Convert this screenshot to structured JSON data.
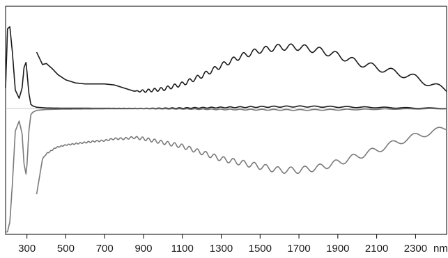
{
  "chart_data": {
    "type": "line",
    "title": "",
    "xlabel": "",
    "ylabel": "",
    "x_unit": "nm",
    "xlim": [
      190,
      2460
    ],
    "ylim": [
      -1,
      1
    ],
    "x_ticks": [
      300,
      500,
      700,
      900,
      1100,
      1300,
      1500,
      1700,
      1900,
      2100,
      2300
    ],
    "grid": false,
    "legend": "none",
    "colors": {
      "dark": "#1a1a1a",
      "gray": "#7a7a7a",
      "frame": "#000000"
    },
    "series": [
      {
        "style": "dark",
        "x": [
          350,
          380,
          400,
          430,
          460,
          500,
          550,
          600,
          650,
          700,
          750,
          800,
          850,
          900,
          1000,
          1100,
          1200,
          1300,
          1400,
          1500,
          1600,
          1700,
          1800,
          1900,
          2000,
          2100,
          2200,
          2300,
          2400,
          2460
        ],
        "y": [
          0.55,
          0.43,
          0.44,
          0.39,
          0.33,
          0.28,
          0.25,
          0.24,
          0.24,
          0.24,
          0.23,
          0.2,
          0.17,
          0.17,
          0.19,
          0.24,
          0.32,
          0.42,
          0.51,
          0.57,
          0.6,
          0.6,
          0.57,
          0.52,
          0.45,
          0.4,
          0.35,
          0.3,
          0.22,
          0.18
        ],
        "amp": [
          0,
          0,
          0,
          0,
          0,
          0,
          0,
          0,
          0,
          0,
          0,
          0,
          0,
          0.012,
          0.015,
          0.018,
          0.02,
          0.022,
          0.024,
          0.026,
          0.027,
          0.028,
          0.028,
          0.028,
          0.028,
          0.028,
          0.027,
          0.027,
          0.026,
          0.025
        ]
      },
      {
        "style": "dark",
        "x": [
          190,
          200,
          212,
          225,
          240,
          260,
          275,
          285,
          295,
          300,
          310,
          320,
          330,
          350,
          400,
          500,
          700,
          900,
          1100,
          1300,
          1500,
          1700,
          1900,
          2100,
          2300,
          2460
        ],
        "y": [
          0.2,
          0.78,
          0.8,
          0.55,
          0.18,
          0.1,
          0.2,
          0.4,
          0.45,
          0.36,
          0.15,
          0.04,
          0.025,
          0.012,
          0.005,
          0.003,
          0.002,
          0.001,
          0.004,
          0.01,
          0.016,
          0.02,
          0.016,
          0.01,
          0.004,
          0.002
        ],
        "amp": [
          0,
          0,
          0,
          0,
          0,
          0,
          0,
          0,
          0,
          0,
          0,
          0,
          0,
          0,
          0,
          0,
          0,
          0.001,
          0.003,
          0.004,
          0.005,
          0.005,
          0.005,
          0.004,
          0.003,
          0.002
        ]
      },
      {
        "style": "gray",
        "x": [
          190,
          200,
          212,
          225,
          240,
          260,
          275,
          285,
          295,
          300,
          310,
          320,
          330,
          350,
          400,
          500,
          700,
          900,
          1100,
          1300,
          1500,
          1700,
          1900,
          2100,
          2300,
          2460
        ],
        "y": [
          -0.98,
          -0.98,
          -0.9,
          -0.6,
          -0.18,
          -0.1,
          -0.2,
          -0.44,
          -0.52,
          -0.45,
          -0.18,
          -0.05,
          -0.03,
          -0.015,
          -0.008,
          -0.005,
          -0.003,
          -0.002,
          -0.004,
          -0.008,
          -0.01,
          -0.012,
          -0.01,
          -0.006,
          -0.003,
          -0.002
        ],
        "amp": [
          0,
          0,
          0,
          0,
          0,
          0,
          0,
          0,
          0,
          0,
          0,
          0,
          0,
          0,
          0,
          0,
          0,
          0.001,
          0.002,
          0.003,
          0.004,
          0.004,
          0.004,
          0.003,
          0.002,
          0.002
        ]
      },
      {
        "style": "gray",
        "x": [
          350,
          380,
          400,
          450,
          500,
          550,
          600,
          650,
          700,
          750,
          800,
          850,
          900,
          1000,
          1100,
          1200,
          1300,
          1400,
          1500,
          1600,
          1700,
          1800,
          1900,
          2000,
          2100,
          2200,
          2300,
          2400,
          2460
        ],
        "y": [
          -0.68,
          -0.4,
          -0.36,
          -0.31,
          -0.29,
          -0.28,
          -0.27,
          -0.26,
          -0.255,
          -0.24,
          -0.24,
          -0.23,
          -0.24,
          -0.27,
          -0.3,
          -0.35,
          -0.4,
          -0.43,
          -0.46,
          -0.49,
          -0.49,
          -0.47,
          -0.43,
          -0.38,
          -0.33,
          -0.27,
          -0.22,
          -0.18,
          -0.16
        ],
        "amp": [
          0,
          0,
          0.004,
          0.004,
          0.004,
          0.005,
          0.006,
          0.006,
          0.006,
          0.007,
          0.008,
          0.01,
          0.014,
          0.016,
          0.018,
          0.02,
          0.022,
          0.024,
          0.026,
          0.027,
          0.028,
          0.028,
          0.028,
          0.028,
          0.028,
          0.027,
          0.027,
          0.026,
          0.025
        ]
      }
    ]
  }
}
